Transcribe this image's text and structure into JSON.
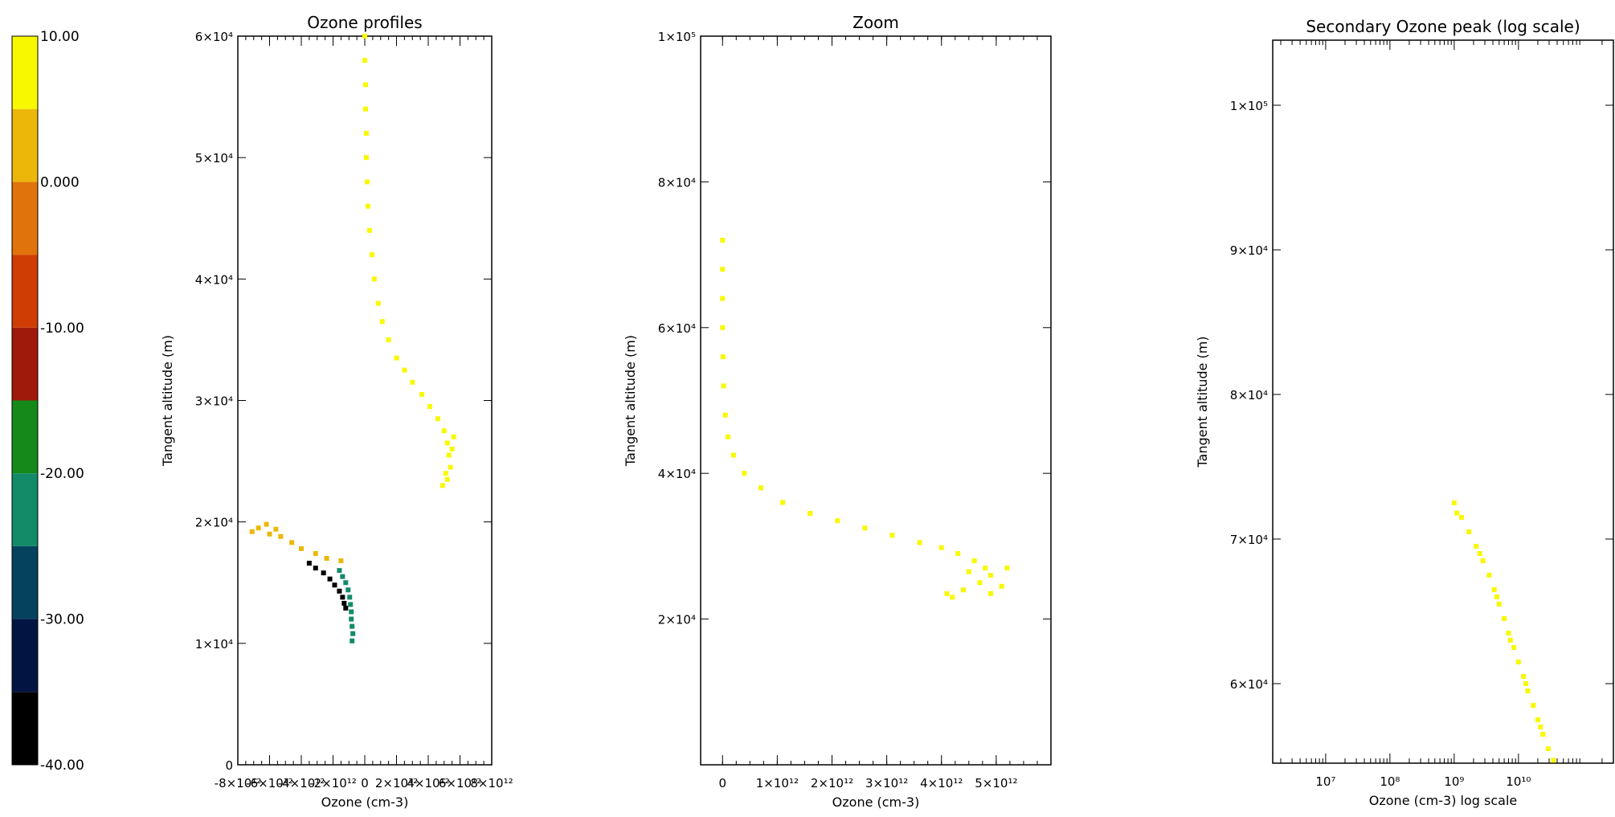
{
  "colorbar": {
    "levels": [
      {
        "from": -40,
        "to": -35,
        "color": "#000000"
      },
      {
        "from": -35,
        "to": -30,
        "color": "#021542"
      },
      {
        "from": -30,
        "to": -25,
        "color": "#05425e"
      },
      {
        "from": -25,
        "to": -20,
        "color": "#138a68"
      },
      {
        "from": -20,
        "to": -15,
        "color": "#138a1a"
      },
      {
        "from": -15,
        "to": -10,
        "color": "#a01a0c"
      },
      {
        "from": -10,
        "to": -5,
        "color": "#cf3d05"
      },
      {
        "from": -5,
        "to": 0,
        "color": "#e0730b"
      },
      {
        "from": 0,
        "to": 5,
        "color": "#ebb80a"
      },
      {
        "from": 5,
        "to": 10,
        "color": "#f8f800"
      }
    ],
    "tick_labels": [
      "-40.00",
      "-30.00",
      "-20.00",
      "-10.00",
      "0.000",
      "10.00"
    ]
  },
  "chart_data": [
    {
      "type": "scatter",
      "title": "Ozone profiles",
      "xlabel": "Ozone (cm-3)",
      "ylabel": "Tangent altitude (m)",
      "xlim": [
        -8000000000000.0,
        8000000000000.0
      ],
      "ylim": [
        0,
        60000
      ],
      "xticks": [
        -8000000000000.0,
        -6000000000000.0,
        -4000000000000.0,
        -2000000000000.0,
        0,
        2000000000000.0,
        4000000000000.0,
        6000000000000.0,
        8000000000000.0
      ],
      "xtick_labels": [
        "-8×10¹²",
        "-6×10¹²",
        "-4×10¹²",
        "-2×10¹²",
        "0",
        "2×10¹²",
        "4×10¹²",
        "6×10¹²",
        "8×10¹²"
      ],
      "yticks": [
        0,
        10000,
        20000,
        30000,
        40000,
        50000,
        60000
      ],
      "ytick_labels": [
        "0",
        "1×10⁴",
        "2×10⁴",
        "3×10⁴",
        "4×10⁴",
        "5×10⁴",
        "6×10⁴"
      ],
      "series": [
        {
          "color": "#f8f800",
          "points": [
            [
              0.0,
              60000
            ],
            [
              0.0,
              58000
            ],
            [
              50000000000.0,
              56000
            ],
            [
              50000000000.0,
              54000
            ],
            [
              100000000000.0,
              52000
            ],
            [
              100000000000.0,
              50000
            ],
            [
              150000000000.0,
              48000
            ],
            [
              200000000000.0,
              46000
            ],
            [
              300000000000.0,
              44000
            ],
            [
              450000000000.0,
              42000
            ],
            [
              600000000000.0,
              40000
            ],
            [
              850000000000.0,
              38000
            ],
            [
              1100000000000.0,
              36500
            ],
            [
              1500000000000.0,
              35000
            ],
            [
              2000000000000.0,
              33500
            ],
            [
              2500000000000.0,
              32500
            ],
            [
              3000000000000.0,
              31500
            ],
            [
              3600000000000.0,
              30500
            ],
            [
              4100000000000.0,
              29500
            ],
            [
              4600000000000.0,
              28500
            ],
            [
              5000000000000.0,
              27500
            ],
            [
              5200000000000.0,
              26500
            ],
            [
              5300000000000.0,
              25500
            ],
            [
              5400000000000.0,
              24500
            ],
            [
              5200000000000.0,
              23500
            ],
            [
              4900000000000.0,
              23000
            ],
            [
              5100000000000.0,
              24000
            ],
            [
              5500000000000.0,
              26000
            ],
            [
              5600000000000.0,
              27000
            ]
          ]
        },
        {
          "color": "#ebb80a",
          "points": [
            [
              -7100000000000.0,
              19200
            ],
            [
              -6700000000000.0,
              19500
            ],
            [
              -6200000000000.0,
              19800
            ],
            [
              -6000000000000.0,
              19000
            ],
            [
              -5600000000000.0,
              19400
            ],
            [
              -5300000000000.0,
              18800
            ],
            [
              -4600000000000.0,
              18300
            ],
            [
              -4000000000000.0,
              17800
            ],
            [
              -3100000000000.0,
              17400
            ],
            [
              -2400000000000.0,
              17000
            ],
            [
              -1500000000000.0,
              16800
            ]
          ]
        },
        {
          "color": "#000000",
          "points": [
            [
              -3500000000000.0,
              16600
            ],
            [
              -3100000000000.0,
              16200
            ],
            [
              -2600000000000.0,
              15800
            ],
            [
              -2200000000000.0,
              15300
            ],
            [
              -1900000000000.0,
              14800
            ],
            [
              -1600000000000.0,
              14300
            ],
            [
              -1400000000000.0,
              13800
            ],
            [
              -1300000000000.0,
              13300
            ],
            [
              -1200000000000.0,
              12900
            ]
          ]
        },
        {
          "color": "#138a68",
          "points": [
            [
              -1600000000000.0,
              16000
            ],
            [
              -1400000000000.0,
              15500
            ],
            [
              -1200000000000.0,
              15000
            ],
            [
              -1050000000000.0,
              14400
            ],
            [
              -950000000000.0,
              13800
            ],
            [
              -900000000000.0,
              13200
            ],
            [
              -850000000000.0,
              12600
            ],
            [
              -850000000000.0,
              12000
            ],
            [
              -800000000000.0,
              11400
            ],
            [
              -750000000000.0,
              10800
            ],
            [
              -800000000000.0,
              10200
            ]
          ]
        }
      ]
    },
    {
      "type": "scatter",
      "title": "Zoom",
      "xlabel": "Ozone (cm-3)",
      "ylabel": "Tangent altitude (m)",
      "xlim": [
        -400000000000.0,
        6000000000000.0
      ],
      "ylim": [
        0,
        100000
      ],
      "xticks": [
        0,
        1000000000000.0,
        2000000000000.0,
        3000000000000.0,
        4000000000000.0,
        5000000000000.0
      ],
      "xtick_labels": [
        "0",
        "1×10¹²",
        "2×10¹²",
        "3×10¹²",
        "4×10¹²",
        "5×10¹²"
      ],
      "yticks": [
        20000,
        40000,
        60000,
        80000,
        100000
      ],
      "ytick_labels": [
        "2×10⁴",
        "4×10⁴",
        "6×10⁴",
        "8×10⁴",
        "1×10⁵"
      ],
      "series": [
        {
          "color": "#f8f800",
          "points": [
            [
              0.0,
              72000
            ],
            [
              0.0,
              68000
            ],
            [
              0.0,
              64000
            ],
            [
              0.0,
              60000
            ],
            [
              10000000000.0,
              56000
            ],
            [
              20000000000.0,
              52000
            ],
            [
              50000000000.0,
              48000
            ],
            [
              100000000000.0,
              45000
            ],
            [
              200000000000.0,
              42500
            ],
            [
              400000000000.0,
              40000
            ],
            [
              700000000000.0,
              38000
            ],
            [
              1100000000000.0,
              36000
            ],
            [
              1600000000000.0,
              34500
            ],
            [
              2100000000000.0,
              33500
            ],
            [
              2600000000000.0,
              32500
            ],
            [
              3100000000000.0,
              31500
            ],
            [
              3600000000000.0,
              30500
            ],
            [
              4000000000000.0,
              29800
            ],
            [
              4300000000000.0,
              29000
            ],
            [
              4600000000000.0,
              28000
            ],
            [
              4800000000000.0,
              27000
            ],
            [
              4900000000000.0,
              26000
            ],
            [
              4700000000000.0,
              25000
            ],
            [
              4400000000000.0,
              24000
            ],
            [
              4200000000000.0,
              23000
            ],
            [
              4900000000000.0,
              23500
            ],
            [
              5100000000000.0,
              24500
            ],
            [
              5200000000000.0,
              27000
            ],
            [
              4500000000000.0,
              26500
            ],
            [
              4100000000000.0,
              23500
            ]
          ]
        }
      ]
    },
    {
      "type": "scatter",
      "title": "Secondary Ozone peak (log scale)",
      "xlabel": "Ozone (cm-3) log scale",
      "ylabel": "Tangent altitude (m)",
      "xscale": "log",
      "xlim": [
        1500000.0,
        300000000000.0
      ],
      "ylim": [
        54500,
        104500
      ],
      "xticks": [
        10000000.0,
        100000000.0,
        1000000000.0,
        10000000000.0
      ],
      "xtick_labels": [
        "10⁷",
        "10⁸",
        "10⁹",
        "10¹⁰"
      ],
      "yticks": [
        60000,
        70000,
        80000,
        90000,
        100000
      ],
      "ytick_labels": [
        "6×10⁴",
        "7×10⁴",
        "8×10⁴",
        "9×10⁴",
        "1×10⁵"
      ],
      "series": [
        {
          "color": "#f8f800",
          "points": [
            [
              1000000000.0,
              72500
            ],
            [
              1300000000.0,
              71500
            ],
            [
              1700000000.0,
              70500
            ],
            [
              2200000000.0,
              69500
            ],
            [
              2800000000.0,
              68500
            ],
            [
              3500000000.0,
              67500
            ],
            [
              4200000000.0,
              66500
            ],
            [
              5000000000.0,
              65500
            ],
            [
              6000000000.0,
              64500
            ],
            [
              7000000000.0,
              63500
            ],
            [
              8500000000.0,
              62500
            ],
            [
              10000000000.0,
              61500
            ],
            [
              12000000000.0,
              60500
            ],
            [
              14000000000.0,
              59500
            ],
            [
              17000000000.0,
              58500
            ],
            [
              20000000000.0,
              57500
            ],
            [
              24000000000.0,
              56500
            ],
            [
              29000000000.0,
              55500
            ],
            [
              35000000000.0,
              54700
            ],
            [
              1100000000.0,
              71800
            ],
            [
              2500000000.0,
              69000
            ],
            [
              4600000000.0,
              66000
            ],
            [
              7500000000.0,
              63000
            ],
            [
              13000000000.0,
              60000
            ],
            [
              22000000000.0,
              57000
            ]
          ]
        }
      ]
    }
  ]
}
